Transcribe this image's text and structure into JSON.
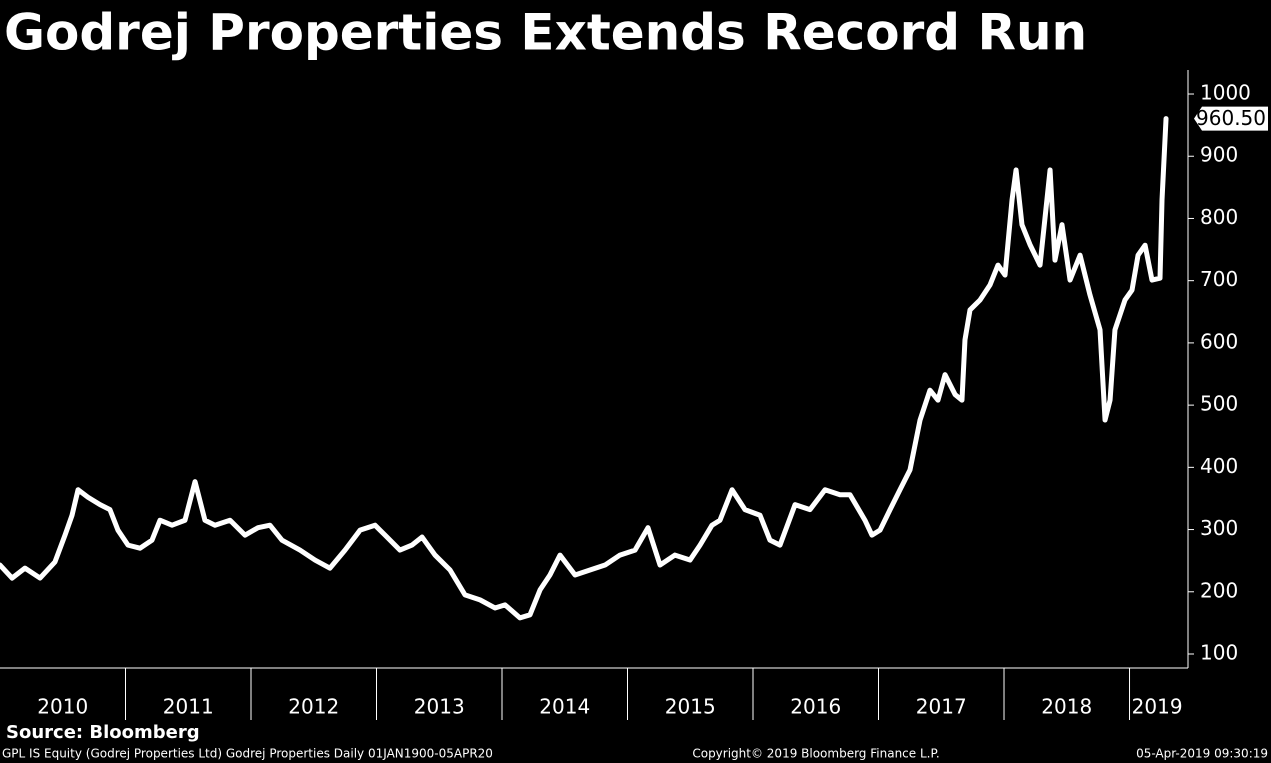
{
  "chart_data": {
    "type": "line",
    "title": "Godrej Properties Extends Record Run",
    "source": "Source: Bloomberg",
    "footer_left": "GPL IS Equity (Godrej Properties Ltd) Godrej Properties  Daily 01JAN1900-05APR20",
    "footer_center": "Copyright© 2019 Bloomberg Finance L.P.",
    "footer_right": "05-Apr-2019 09:30:19",
    "color": "#ffffff",
    "x": [
      2010.0,
      2010.096,
      2010.199,
      2010.319,
      2010.438,
      2010.518,
      2010.574,
      2010.622,
      2010.701,
      2010.797,
      2010.876,
      2010.94,
      2011.02,
      2011.116,
      2011.211,
      2011.275,
      2011.371,
      2011.474,
      2011.554,
      2011.633,
      2011.713,
      2011.833,
      2011.952,
      2012.056,
      2012.151,
      2012.247,
      2012.39,
      2012.51,
      2012.629,
      2012.749,
      2012.869,
      2012.988,
      2013.068,
      2013.187,
      2013.283,
      2013.363,
      2013.466,
      2013.586,
      2013.705,
      2013.825,
      2013.944,
      2014.024,
      2014.143,
      2014.223,
      2014.303,
      2014.382,
      2014.462,
      2014.582,
      2014.701,
      2014.821,
      2014.94,
      2015.06,
      2015.163,
      2015.259,
      2015.378,
      2015.498,
      2015.578,
      2015.673,
      2015.737,
      2015.833,
      2015.936,
      2016.056,
      2016.135,
      2016.215,
      2016.335,
      2016.454,
      2016.574,
      2016.693,
      2016.773,
      2016.892,
      2016.948,
      2017.012,
      2017.092,
      2017.171,
      2017.251,
      2017.331,
      2017.41,
      2017.474,
      2017.53,
      2017.61,
      2017.665,
      2017.689,
      2017.729,
      2017.809,
      2017.888,
      2017.952,
      2018.008,
      2018.064,
      2018.096,
      2018.143,
      2018.207,
      2018.287,
      2018.367,
      2018.406,
      2018.462,
      2018.526,
      2018.606,
      2018.685,
      2018.765,
      2018.805,
      2018.845,
      2018.884,
      2018.964,
      2019.02,
      2019.068,
      2019.124,
      2019.179,
      2019.243,
      2019.259,
      2019.291
    ],
    "values": [
      243,
      222,
      238,
      222,
      248,
      291,
      323,
      364,
      352,
      340,
      332,
      299,
      275,
      270,
      283,
      315,
      307,
      315,
      377,
      315,
      307,
      315,
      291,
      303,
      307,
      283,
      267,
      251,
      238,
      267,
      299,
      307,
      291,
      267,
      275,
      288,
      259,
      235,
      195,
      187,
      174,
      179,
      158,
      163,
      203,
      227,
      259,
      227,
      235,
      243,
      259,
      267,
      303,
      243,
      259,
      251,
      275,
      307,
      315,
      364,
      332,
      323,
      283,
      275,
      340,
      332,
      364,
      356,
      356,
      315,
      291,
      299,
      332,
      364,
      396,
      476,
      524,
      508,
      549,
      517,
      508,
      605,
      653,
      669,
      693,
      725,
      709,
      830,
      878,
      790,
      758,
      725,
      878,
      733,
      790,
      701,
      741,
      677,
      621,
      476,
      508,
      621,
      669,
      685,
      741,
      757,
      701,
      704,
      830,
      960.5
    ],
    "last_value": {
      "value": 960.5,
      "label": "960.50"
    },
    "xlim": [
      2010,
      2019.466
    ],
    "ylim": [
      77.5,
      1038.6
    ],
    "yticks": [
      100,
      200,
      300,
      400,
      500,
      600,
      700,
      800,
      900,
      1000
    ],
    "xticks": [
      {
        "value": 2010.5,
        "label": "2010"
      },
      {
        "value": 2011.5,
        "label": "2011"
      },
      {
        "value": 2012.5,
        "label": "2012"
      },
      {
        "value": 2013.5,
        "label": "2013"
      },
      {
        "value": 2014.5,
        "label": "2014"
      },
      {
        "value": 2015.5,
        "label": "2015"
      },
      {
        "value": 2016.5,
        "label": "2016"
      },
      {
        "value": 2017.5,
        "label": "2017"
      },
      {
        "value": 2018.5,
        "label": "2018"
      },
      {
        "value": 2019.22,
        "label": "2019"
      }
    ],
    "xseparators": [
      2011,
      2012,
      2013,
      2014,
      2015,
      2016,
      2017,
      2018,
      2019
    ]
  }
}
